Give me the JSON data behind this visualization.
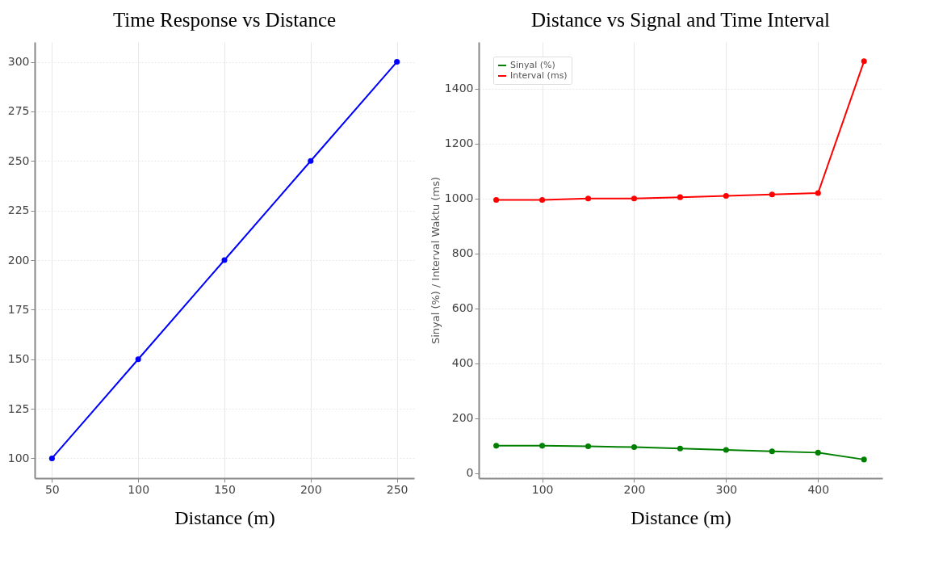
{
  "chart_data": [
    {
      "type": "line",
      "title": "Time Response vs Distance",
      "xlabel": "Distance (m)",
      "x": [
        50,
        100,
        150,
        200,
        250
      ],
      "series": [
        {
          "color": "#0000ff",
          "values": [
            100,
            150,
            200,
            250,
            300
          ]
        }
      ],
      "xlim": [
        40,
        260
      ],
      "xticks": [
        50,
        100,
        150,
        200,
        250
      ],
      "ylim": [
        90,
        310
      ],
      "yticks": [
        100,
        125,
        150,
        175,
        200,
        225,
        250,
        275,
        300
      ],
      "grid": true,
      "marker": "circle"
    },
    {
      "type": "line",
      "title": "Distance vs Signal and Time Interval",
      "xlabel": "Distance (m)",
      "ylabel": "Sinyal (%) / Interval Waktu (ms)",
      "x": [
        50,
        100,
        150,
        200,
        250,
        300,
        350,
        400,
        450
      ],
      "series": [
        {
          "name": "Sinyal (%)",
          "color": "#008000",
          "values": [
            100,
            100,
            98,
            95,
            90,
            85,
            80,
            75,
            50
          ]
        },
        {
          "name": "Interval (ms)",
          "color": "#ff0000",
          "values": [
            995,
            995,
            1000,
            1000,
            1005,
            1010,
            1015,
            1020,
            1500
          ]
        }
      ],
      "xlim": [
        31,
        470
      ],
      "xticks": [
        100,
        200,
        300,
        400
      ],
      "ylim": [
        -18,
        1570
      ],
      "yticks": [
        0,
        200,
        400,
        600,
        800,
        1000,
        1200,
        1400
      ],
      "grid": true,
      "legend": "top left",
      "marker": "circle"
    }
  ]
}
